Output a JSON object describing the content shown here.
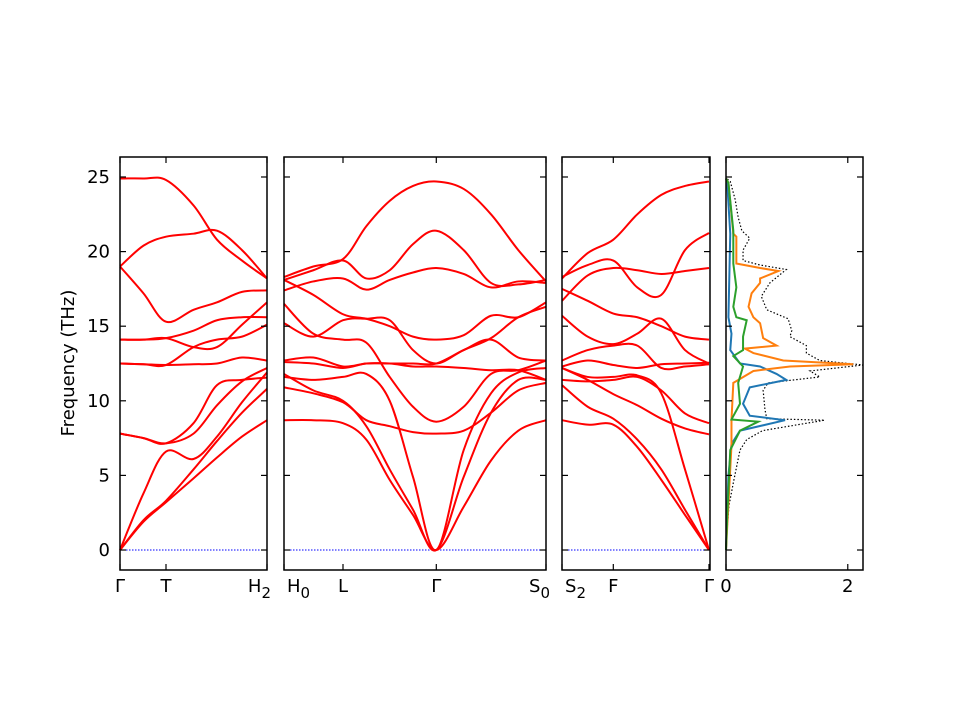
{
  "chart_data": {
    "type": "line",
    "title": "",
    "ylabel": "Frequency (THz)",
    "ylim": [
      -1.34,
      26.34
    ],
    "yticks": [
      0,
      5,
      10,
      15,
      20,
      25
    ],
    "colors": {
      "band": "#ff0000",
      "zero_line": "#0000ff",
      "total": "#000000",
      "blue": "#1f77b4",
      "orange": "#ff7f0e",
      "green": "#2ca02c"
    },
    "band_panels": [
      {
        "name": "gamma-t-h2",
        "klim": [
          0,
          1.47
        ],
        "ticks": [
          {
            "k": 0,
            "main": "Γ",
            "sub": ""
          },
          {
            "k": 0.46,
            "main": "T",
            "sub": ""
          },
          {
            "k": 1.47,
            "main": "H",
            "sub": "2",
            "anchor": "end"
          }
        ],
        "k": [
          0,
          0.235,
          0.46,
          0.735,
          0.97,
          1.22,
          1.47
        ],
        "bands": [
          [
            24.9,
            24.9,
            24.8,
            23.1,
            20.8,
            19.4,
            18.2
          ],
          [
            19.0,
            20.4,
            21.0,
            21.2,
            21.4,
            20.1,
            18.2
          ],
          [
            19.0,
            17.2,
            15.3,
            16.1,
            16.6,
            17.3,
            17.4
          ],
          [
            14.1,
            14.1,
            14.2,
            14.7,
            15.4,
            15.6,
            15.6
          ],
          [
            14.1,
            14.1,
            14.2,
            13.6,
            13.6,
            15.1,
            16.6
          ],
          [
            12.5,
            12.45,
            12.4,
            13.6,
            14.1,
            14.3,
            15.1
          ],
          [
            12.5,
            12.45,
            12.4,
            12.45,
            12.5,
            12.9,
            12.7
          ],
          [
            7.8,
            7.5,
            7.15,
            8.5,
            11.05,
            11.4,
            11.55
          ],
          [
            7.8,
            7.5,
            7.15,
            7.8,
            9.7,
            11.3,
            12.2
          ],
          [
            0,
            3.8,
            6.6,
            6.1,
            7.6,
            9.9,
            11.9
          ],
          [
            0,
            2.0,
            3.3,
            5.4,
            7.3,
            9.2,
            10.8
          ],
          [
            0,
            1.9,
            3.2,
            4.8,
            6.2,
            7.6,
            8.7
          ]
        ]
      },
      {
        "name": "h0-l-gamma-s0",
        "klim": [
          1.47,
          4.09
        ],
        "ticks": [
          {
            "k": 1.47,
            "main": "H",
            "sub": "0",
            "anchor": "start"
          },
          {
            "k": 2.06,
            "main": "L",
            "sub": ""
          },
          {
            "k": 2.993,
            "main": "Γ",
            "sub": ""
          },
          {
            "k": 4.09,
            "main": "S",
            "sub": "0",
            "anchor": "end"
          }
        ],
        "k": [
          1.47,
          1.763,
          2.06,
          2.293,
          2.527,
          2.76,
          2.993,
          3.267,
          3.54,
          3.813,
          4.09
        ],
        "bands": [
          [
            18.3,
            19.0,
            19.5,
            21.7,
            23.4,
            24.4,
            24.7,
            24.2,
            22.5,
            20.1,
            18.0
          ],
          [
            18.1,
            18.75,
            19.4,
            18.2,
            18.75,
            20.5,
            21.4,
            20.1,
            17.9,
            17.8,
            18.1
          ],
          [
            17.4,
            18.0,
            18.2,
            17.45,
            18.1,
            18.6,
            18.9,
            18.5,
            17.6,
            18.0,
            17.9
          ],
          [
            18.1,
            17.1,
            15.8,
            15.5,
            15.0,
            14.3,
            14.1,
            14.4,
            15.7,
            15.6,
            16.6
          ],
          [
            15.2,
            14.3,
            15.4,
            15.5,
            15.4,
            13.4,
            12.5,
            13.4,
            14.1,
            12.9,
            12.7
          ],
          [
            16.5,
            14.5,
            14.1,
            13.9,
            11.6,
            9.6,
            8.6,
            9.6,
            11.8,
            12.05,
            12.7
          ],
          [
            12.7,
            12.9,
            12.3,
            12.5,
            12.5,
            12.3,
            12.3,
            12.2,
            12.05,
            12.05,
            11.4
          ],
          [
            12.6,
            12.5,
            12.2,
            12.5,
            12.5,
            12.5,
            12.5,
            13.4,
            14.2,
            15.6,
            16.3
          ],
          [
            10.9,
            10.5,
            9.9,
            8.7,
            8.3,
            7.9,
            7.8,
            8.0,
            9.2,
            10.7,
            11.2
          ],
          [
            11.6,
            11.4,
            11.6,
            11.8,
            10.0,
            4.9,
            0,
            6.7,
            10.5,
            11.9,
            12.2
          ],
          [
            11.8,
            10.7,
            10.0,
            8.3,
            5.4,
            2.7,
            0,
            4.9,
            9.2,
            11.4,
            11.4
          ],
          [
            8.7,
            8.7,
            8.5,
            7.4,
            4.7,
            2.35,
            0,
            2.9,
            6.0,
            8.0,
            8.7
          ]
        ]
      },
      {
        "name": "s2-f-gamma",
        "klim": [
          4.09,
          5.57
        ],
        "ticks": [
          {
            "k": 4.09,
            "main": "S",
            "sub": "2",
            "anchor": "start"
          },
          {
            "k": 4.603,
            "main": "F",
            "sub": ""
          },
          {
            "k": 5.56,
            "main": "Γ",
            "sub": ""
          }
        ],
        "k": [
          4.09,
          4.347,
          4.603,
          4.843,
          5.083,
          5.32,
          5.56
        ],
        "bands": [
          [
            18.2,
            19.9,
            20.8,
            22.5,
            23.8,
            24.4,
            24.7
          ],
          [
            18.3,
            19.1,
            19.4,
            17.6,
            17.1,
            20.1,
            21.25
          ],
          [
            16.7,
            18.4,
            18.9,
            18.75,
            18.5,
            18.7,
            18.9
          ],
          [
            17.5,
            16.7,
            15.85,
            15.6,
            15.0,
            14.3,
            14.1
          ],
          [
            15.7,
            14.3,
            13.8,
            14.5,
            15.5,
            13.4,
            12.5
          ],
          [
            12.7,
            13.4,
            13.7,
            13.7,
            12.2,
            12.3,
            12.45
          ],
          [
            12.3,
            12.7,
            12.4,
            12.2,
            12.45,
            12.5,
            12.55
          ],
          [
            11.4,
            11.3,
            11.4,
            11.6,
            10.7,
            9.15,
            8.5
          ],
          [
            12.2,
            11.4,
            10.45,
            9.7,
            8.8,
            8.15,
            7.75
          ],
          [
            12.2,
            11.6,
            11.6,
            11.7,
            10.5,
            5.4,
            0
          ],
          [
            11.05,
            9.6,
            8.8,
            7.4,
            5.4,
            2.7,
            0
          ],
          [
            8.7,
            8.4,
            8.4,
            6.9,
            4.7,
            2.35,
            0
          ]
        ]
      }
    ],
    "dos_panel": {
      "xlim": [
        0,
        2.25
      ],
      "xticks": [
        0,
        2
      ],
      "series": [
        {
          "name": "total",
          "color": "#000000",
          "dashed": true,
          "freq": [
            0,
            1,
            2,
            3,
            4.5,
            6.7,
            7.4,
            8.0,
            8.7,
            8.8,
            9.4,
            10.7,
            11.2,
            11.6,
            12.0,
            12.4,
            12.7,
            13.2,
            13.7,
            14.3,
            14.7,
            15.5,
            16.1,
            17.0,
            17.9,
            18.8,
            19.1,
            19.4,
            20.1,
            20.9,
            21.4,
            22.3,
            23.5,
            24.7,
            24.9
          ],
          "dos": [
            0,
            0.01,
            0.03,
            0.05,
            0.12,
            0.23,
            0.34,
            0.6,
            1.62,
            0.67,
            0.64,
            0.61,
            0.69,
            1.54,
            1.38,
            2.25,
            1.54,
            1.32,
            1.32,
            1.05,
            1.08,
            1.02,
            0.67,
            0.58,
            0.72,
            0.99,
            0.56,
            0.28,
            0.28,
            0.39,
            0.26,
            0.2,
            0.15,
            0.07,
            0.01
          ]
        },
        {
          "name": "blue",
          "color": "#1f77b4",
          "dashed": false,
          "freq": [
            0,
            5,
            7.1,
            8.0,
            8.7,
            9.0,
            9.8,
            10.9,
            11.4,
            11.8,
            12.3,
            12.5,
            13.4,
            14.5,
            15.6,
            21.2,
            24.6,
            24.9
          ],
          "dos": [
            0,
            0.04,
            0.09,
            0.23,
            0.97,
            0.39,
            0.28,
            0.39,
            0.99,
            0.83,
            0.56,
            0.23,
            0.07,
            0.09,
            0.04,
            0.07,
            0.02,
            0
          ]
        },
        {
          "name": "orange",
          "color": "#ff7f0e",
          "dashed": false,
          "freq": [
            0,
            7,
            8.7,
            11.2,
            12.0,
            12.3,
            12.45,
            12.7,
            13.2,
            13.5,
            13.7,
            14.2,
            15.2,
            15.6,
            16.3,
            17.2,
            17.9,
            18.2,
            18.7,
            18.9,
            19.2,
            21.0,
            21.2,
            24.6,
            24.9
          ],
          "dos": [
            0,
            0.09,
            0.09,
            0.12,
            0.45,
            1.05,
            2.09,
            0.94,
            0.45,
            0.31,
            0.83,
            0.61,
            0.56,
            0.45,
            0.37,
            0.42,
            0.56,
            0.56,
            0.86,
            0.56,
            0.17,
            0.17,
            0.12,
            0.04,
            0
          ]
        },
        {
          "name": "green",
          "color": "#2ca02c",
          "dashed": false,
          "freq": [
            0,
            2.2,
            6.7,
            8.0,
            8.6,
            8.75,
            9.8,
            11.2,
            12.3,
            13.0,
            13.4,
            14.3,
            15.4,
            15.6,
            16.3,
            17.6,
            19.2,
            20.1,
            21.4,
            24.6,
            24.9
          ],
          "dos": [
            0,
            0.02,
            0.07,
            0.23,
            0.53,
            0.09,
            0.23,
            0.2,
            0.28,
            0.12,
            0.28,
            0.28,
            0.34,
            0.17,
            0.12,
            0.17,
            0.12,
            0.12,
            0.12,
            0.04,
            0
          ]
        }
      ]
    }
  }
}
